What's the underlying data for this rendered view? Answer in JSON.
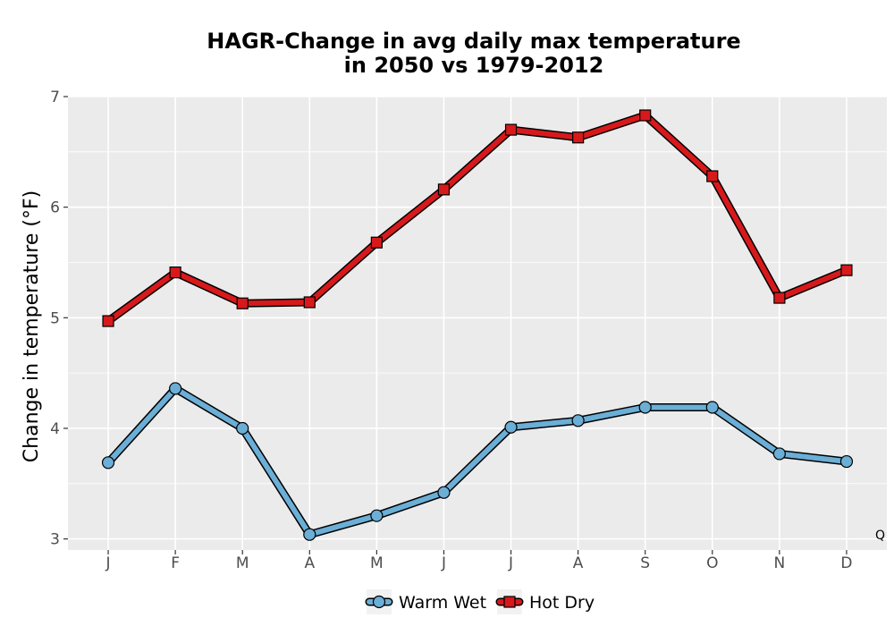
{
  "chart_data": {
    "type": "line",
    "title_line1": "HAGR-Change in avg daily max temperature",
    "title_line2": "in 2050 vs 1979-2012",
    "ylabel": "Change in temperature (°F)",
    "xlabel": "",
    "categories": [
      "J",
      "F",
      "M",
      "A",
      "M",
      "J",
      "J",
      "A",
      "S",
      "O",
      "N",
      "D"
    ],
    "ylim": [
      2.9,
      7.0
    ],
    "yticks": [
      3,
      4,
      5,
      6,
      7
    ],
    "grid": true,
    "legend_position": "bottom",
    "corner_label": "Q",
    "series": [
      {
        "name": "Warm Wet",
        "color": "#6baed6",
        "marker": "circle",
        "values": [
          3.69,
          4.36,
          4.0,
          3.04,
          3.21,
          3.42,
          4.01,
          4.07,
          4.19,
          4.19,
          3.77,
          3.7
        ]
      },
      {
        "name": "Hot Dry",
        "color": "#d7191c",
        "marker": "square",
        "values": [
          4.97,
          5.41,
          5.13,
          5.14,
          5.68,
          6.16,
          6.7,
          6.63,
          6.83,
          6.28,
          5.18,
          5.43
        ]
      }
    ]
  },
  "colors": {
    "panel": "#ebebeb",
    "grid": "#ffffff"
  }
}
